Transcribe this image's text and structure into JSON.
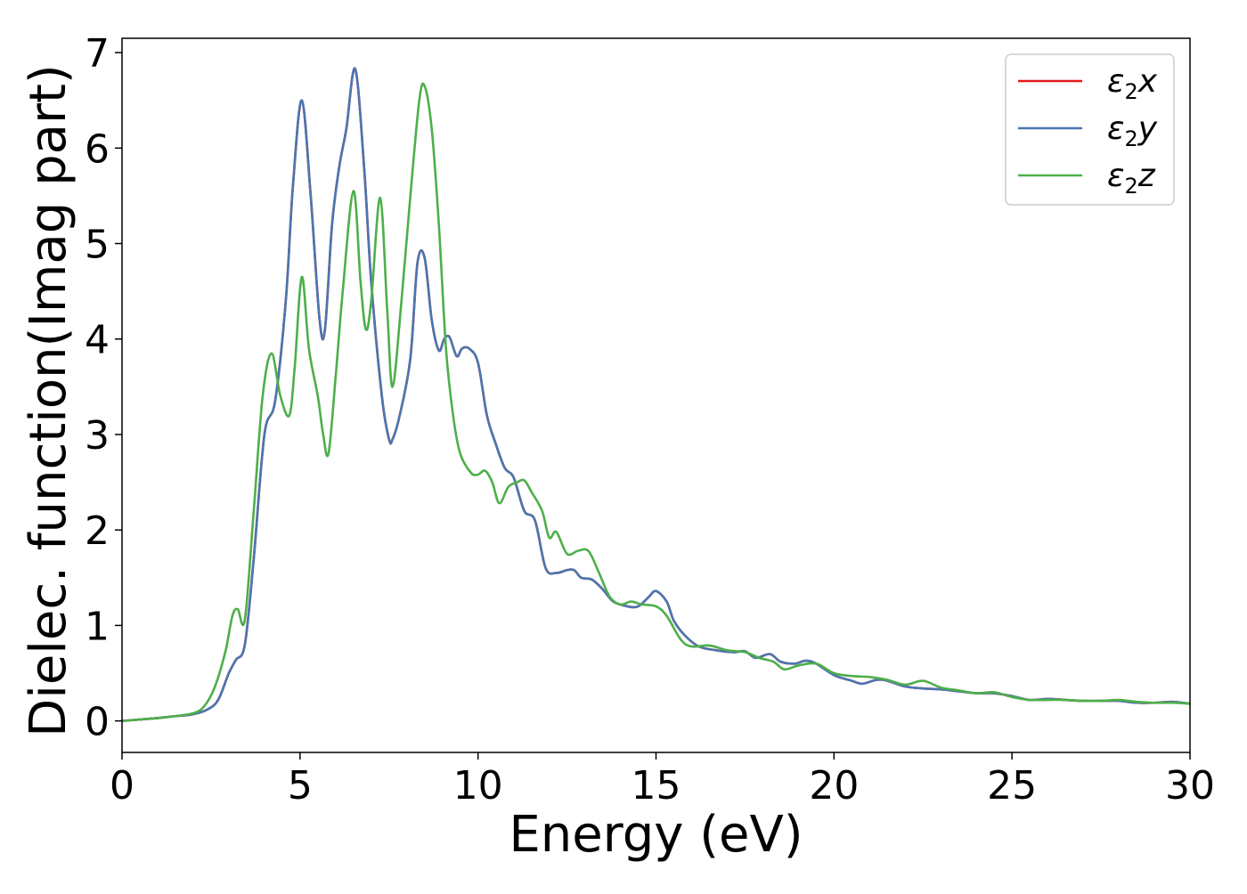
{
  "chart_data": {
    "type": "line",
    "title": "",
    "xlabel": "Energy (eV)",
    "ylabel": "Dielec. function(Imag part)",
    "xlim": [
      0,
      30
    ],
    "ylim": [
      -0.33,
      7.15
    ],
    "xticks": [
      0,
      5,
      10,
      15,
      20,
      25,
      30
    ],
    "yticks": [
      0,
      1,
      2,
      3,
      4,
      5,
      6,
      7
    ],
    "grid": false,
    "legend_position": "top-right",
    "series": [
      {
        "name": "ε2x",
        "legend_main": "ε",
        "legend_sub": "2",
        "legend_var": "x",
        "color": "#e41a1c",
        "x": [
          0,
          1,
          1.5,
          2,
          2.4,
          2.7,
          3.0,
          3.2,
          3.45,
          3.7,
          4.0,
          4.3,
          4.6,
          4.8,
          5.05,
          5.3,
          5.55,
          5.7,
          5.9,
          6.1,
          6.3,
          6.55,
          6.8,
          7.0,
          7.3,
          7.5,
          7.6,
          7.8,
          8.1,
          8.3,
          8.5,
          8.7,
          8.9,
          9.05,
          9.2,
          9.4,
          9.55,
          9.75,
          10.0,
          10.25,
          10.5,
          10.75,
          11.0,
          11.3,
          11.6,
          11.9,
          12.2,
          12.5,
          12.7,
          12.9,
          13.2,
          13.5,
          13.8,
          14.2,
          14.5,
          14.8,
          15.0,
          15.3,
          15.5,
          15.8,
          16.2,
          16.7,
          17.2,
          17.5,
          17.8,
          18.2,
          18.5,
          18.9,
          19.2,
          19.5,
          20.0,
          20.5,
          20.8,
          21.2,
          21.5,
          22.0,
          22.5,
          23.0,
          23.5,
          24.0,
          24.5,
          25.0,
          25.5,
          26.0,
          26.5,
          27.0,
          27.5,
          28.0,
          28.5,
          29.0,
          29.5,
          30.0
        ],
        "y": [
          0,
          0.03,
          0.05,
          0.07,
          0.12,
          0.22,
          0.5,
          0.64,
          0.8,
          1.7,
          3.0,
          3.35,
          4.4,
          5.6,
          6.5,
          5.5,
          4.2,
          4.1,
          5.2,
          5.8,
          6.2,
          6.83,
          5.8,
          4.6,
          3.4,
          2.95,
          2.95,
          3.2,
          3.8,
          4.8,
          4.85,
          4.2,
          3.88,
          4.0,
          4.02,
          3.82,
          3.9,
          3.9,
          3.75,
          3.2,
          2.9,
          2.65,
          2.55,
          2.2,
          2.1,
          1.6,
          1.55,
          1.58,
          1.58,
          1.5,
          1.48,
          1.38,
          1.25,
          1.2,
          1.2,
          1.3,
          1.36,
          1.25,
          1.05,
          0.9,
          0.78,
          0.74,
          0.72,
          0.73,
          0.66,
          0.7,
          0.62,
          0.6,
          0.63,
          0.6,
          0.48,
          0.42,
          0.39,
          0.43,
          0.42,
          0.36,
          0.34,
          0.33,
          0.31,
          0.29,
          0.29,
          0.26,
          0.22,
          0.23,
          0.22,
          0.21,
          0.21,
          0.21,
          0.19,
          0.19,
          0.2,
          0.18
        ]
      },
      {
        "name": "ε2y",
        "legend_main": "ε",
        "legend_sub": "2",
        "legend_var": "y",
        "color": "#4a76b0",
        "x": [
          0,
          1,
          1.5,
          2,
          2.4,
          2.7,
          3.0,
          3.2,
          3.45,
          3.7,
          4.0,
          4.3,
          4.6,
          4.8,
          5.05,
          5.3,
          5.55,
          5.7,
          5.9,
          6.1,
          6.3,
          6.55,
          6.8,
          7.0,
          7.3,
          7.5,
          7.6,
          7.8,
          8.1,
          8.3,
          8.5,
          8.7,
          8.9,
          9.05,
          9.2,
          9.4,
          9.55,
          9.75,
          10.0,
          10.25,
          10.5,
          10.75,
          11.0,
          11.3,
          11.6,
          11.9,
          12.2,
          12.5,
          12.7,
          12.9,
          13.2,
          13.5,
          13.8,
          14.2,
          14.5,
          14.8,
          15.0,
          15.3,
          15.5,
          15.8,
          16.2,
          16.7,
          17.2,
          17.5,
          17.8,
          18.2,
          18.5,
          18.9,
          19.2,
          19.5,
          20.0,
          20.5,
          20.8,
          21.2,
          21.5,
          22.0,
          22.5,
          23.0,
          23.5,
          24.0,
          24.5,
          25.0,
          25.5,
          26.0,
          26.5,
          27.0,
          27.5,
          28.0,
          28.5,
          29.0,
          29.5,
          30.0
        ],
        "y": [
          0,
          0.03,
          0.05,
          0.07,
          0.12,
          0.22,
          0.5,
          0.64,
          0.8,
          1.7,
          3.0,
          3.35,
          4.4,
          5.6,
          6.5,
          5.5,
          4.2,
          4.1,
          5.2,
          5.8,
          6.2,
          6.83,
          5.8,
          4.6,
          3.4,
          2.95,
          2.95,
          3.2,
          3.8,
          4.8,
          4.85,
          4.2,
          3.88,
          4.0,
          4.02,
          3.82,
          3.9,
          3.9,
          3.75,
          3.2,
          2.9,
          2.65,
          2.55,
          2.2,
          2.1,
          1.6,
          1.55,
          1.58,
          1.58,
          1.5,
          1.48,
          1.38,
          1.25,
          1.2,
          1.2,
          1.3,
          1.36,
          1.25,
          1.05,
          0.9,
          0.78,
          0.74,
          0.72,
          0.73,
          0.66,
          0.7,
          0.62,
          0.6,
          0.63,
          0.6,
          0.48,
          0.42,
          0.39,
          0.43,
          0.42,
          0.36,
          0.34,
          0.33,
          0.31,
          0.29,
          0.29,
          0.26,
          0.22,
          0.23,
          0.22,
          0.21,
          0.21,
          0.21,
          0.19,
          0.19,
          0.2,
          0.18
        ]
      },
      {
        "name": "ε2z",
        "legend_main": "ε",
        "legend_sub": "2",
        "legend_var": "z",
        "color": "#4daf4a",
        "x": [
          0,
          1,
          1.5,
          2,
          2.3,
          2.6,
          2.9,
          3.1,
          3.25,
          3.45,
          3.7,
          3.95,
          4.2,
          4.45,
          4.7,
          4.85,
          5.05,
          5.25,
          5.5,
          5.65,
          5.8,
          6.0,
          6.2,
          6.5,
          6.7,
          6.85,
          7.0,
          7.25,
          7.45,
          7.6,
          7.85,
          8.1,
          8.35,
          8.5,
          8.7,
          8.9,
          9.1,
          9.3,
          9.5,
          9.8,
          10.0,
          10.2,
          10.4,
          10.6,
          10.85,
          11.1,
          11.3,
          11.5,
          11.8,
          12.0,
          12.2,
          12.5,
          12.8,
          13.1,
          13.4,
          13.7,
          14.0,
          14.3,
          14.6,
          15.0,
          15.3,
          15.7,
          16.0,
          16.5,
          17.0,
          17.5,
          17.9,
          18.3,
          18.6,
          19.0,
          19.5,
          20.0,
          20.5,
          21.0,
          21.5,
          22.0,
          22.5,
          23.0,
          23.5,
          24.0,
          24.5,
          25.0,
          25.5,
          26.0,
          26.5,
          27.0,
          27.5,
          28.0,
          28.5,
          29.0,
          29.5,
          30.0
        ],
        "y": [
          0,
          0.03,
          0.05,
          0.08,
          0.15,
          0.35,
          0.72,
          1.1,
          1.17,
          1.06,
          2.2,
          3.4,
          3.85,
          3.4,
          3.2,
          3.7,
          4.65,
          3.9,
          3.4,
          3.0,
          2.8,
          3.6,
          4.5,
          5.55,
          4.6,
          4.1,
          4.4,
          5.48,
          4.3,
          3.5,
          4.4,
          5.5,
          6.5,
          6.65,
          6.2,
          5.2,
          3.9,
          3.2,
          2.8,
          2.6,
          2.58,
          2.62,
          2.5,
          2.28,
          2.45,
          2.5,
          2.52,
          2.4,
          2.2,
          1.92,
          1.98,
          1.75,
          1.78,
          1.78,
          1.55,
          1.3,
          1.22,
          1.25,
          1.22,
          1.2,
          1.1,
          0.85,
          0.78,
          0.79,
          0.74,
          0.72,
          0.66,
          0.62,
          0.54,
          0.58,
          0.6,
          0.5,
          0.47,
          0.46,
          0.43,
          0.38,
          0.42,
          0.35,
          0.32,
          0.29,
          0.3,
          0.25,
          0.22,
          0.22,
          0.22,
          0.21,
          0.21,
          0.22,
          0.2,
          0.19,
          0.19,
          0.18
        ]
      }
    ]
  }
}
